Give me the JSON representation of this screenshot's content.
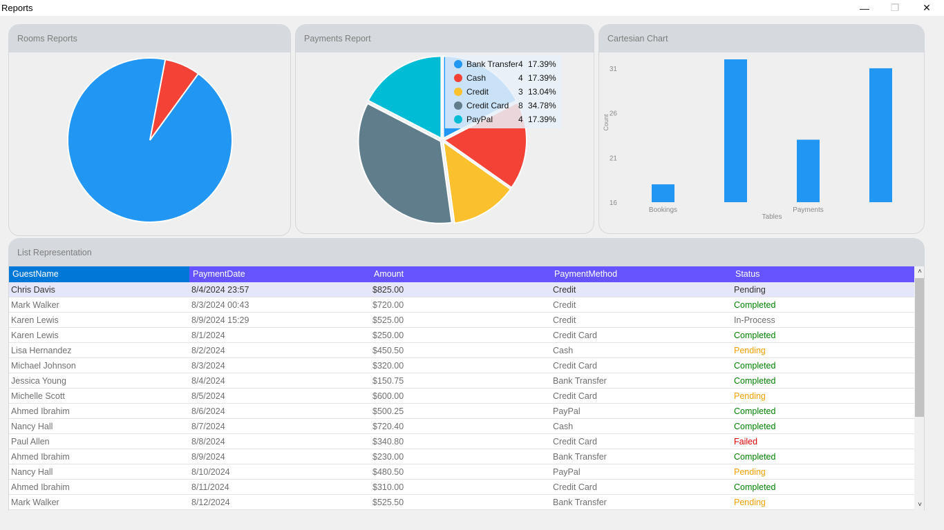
{
  "window": {
    "title": "Reports",
    "minimize_glyph": "—",
    "maximize_glyph": "❐",
    "close_glyph": "✕"
  },
  "rooms_card": {
    "title": "Rooms Reports",
    "slices": [
      {
        "value": 93,
        "color": "#2196f3"
      },
      {
        "value": 7,
        "color": "#f44336"
      }
    ]
  },
  "payments_card": {
    "title": "Payments Report",
    "legend": [
      {
        "name": "Bank Transfer",
        "count": "4",
        "pct": "17.39%",
        "color": "#2196f3"
      },
      {
        "name": "Cash",
        "count": "4",
        "pct": "17.39%",
        "color": "#f44336"
      },
      {
        "name": "Credit",
        "count": "3",
        "pct": "13.04%",
        "color": "#fbc02d"
      },
      {
        "name": "Credit Card",
        "count": "8",
        "pct": "34.78%",
        "color": "#607d8b"
      },
      {
        "name": "PayPal",
        "count": "4",
        "pct": "17.39%",
        "color": "#00bcd4"
      }
    ],
    "slice_order": [
      0,
      1,
      2,
      3,
      4
    ],
    "values": [
      4,
      4,
      3,
      8,
      4
    ]
  },
  "cartesian_card": {
    "title": "Cartesian Chart",
    "chart_data": {
      "type": "bar",
      "x": [
        0,
        1,
        2,
        3
      ],
      "x_tick_labels": [
        "Bookings",
        "",
        "Payments",
        ""
      ],
      "values": [
        18,
        32,
        23,
        31
      ],
      "ylim": [
        16,
        32
      ],
      "yticks": [
        16,
        21,
        26,
        31
      ],
      "xlabel": "Tables",
      "ylabel": "Count",
      "bar_color": "#2196f3",
      "grid": false
    }
  },
  "list_card": {
    "title": "List Representation",
    "columns": [
      "GuestName",
      "PaymentDate",
      "Amount",
      "PaymentMethod",
      "Status"
    ],
    "status_colors": {
      "Completed": "#008000",
      "Pending": "#f0a000",
      "Failed": "#e00000",
      "In-Process": "#707070"
    },
    "rows": [
      {
        "guest": "Chris Davis",
        "date": "8/4/2024 23:57",
        "amount": "$825.00",
        "method": "Credit",
        "status": "Pending",
        "selected": true
      },
      {
        "guest": "Mark Walker",
        "date": "8/3/2024 00:43",
        "amount": "$720.00",
        "method": "Credit",
        "status": "Completed"
      },
      {
        "guest": "Karen Lewis",
        "date": "8/9/2024 15:29",
        "amount": "$525.00",
        "method": "Credit",
        "status": "In-Process"
      },
      {
        "guest": "Karen Lewis",
        "date": "8/1/2024",
        "amount": "$250.00",
        "method": "Credit Card",
        "status": "Completed"
      },
      {
        "guest": "Lisa Hernandez",
        "date": "8/2/2024",
        "amount": "$450.50",
        "method": "Cash",
        "status": "Pending"
      },
      {
        "guest": "Michael Johnson",
        "date": "8/3/2024",
        "amount": "$320.00",
        "method": "Credit Card",
        "status": "Completed"
      },
      {
        "guest": "Jessica Young",
        "date": "8/4/2024",
        "amount": "$150.75",
        "method": "Bank Transfer",
        "status": "Completed"
      },
      {
        "guest": "Michelle Scott",
        "date": "8/5/2024",
        "amount": "$600.00",
        "method": "Credit Card",
        "status": "Pending"
      },
      {
        "guest": "Ahmed Ibrahim",
        "date": "8/6/2024",
        "amount": "$500.25",
        "method": "PayPal",
        "status": "Completed"
      },
      {
        "guest": "Nancy Hall",
        "date": "8/7/2024",
        "amount": "$720.40",
        "method": "Cash",
        "status": "Completed"
      },
      {
        "guest": "Paul Allen",
        "date": "8/8/2024",
        "amount": "$340.80",
        "method": "Credit Card",
        "status": "Failed"
      },
      {
        "guest": "Ahmed Ibrahim",
        "date": "8/9/2024",
        "amount": "$230.00",
        "method": "Bank Transfer",
        "status": "Completed"
      },
      {
        "guest": "Nancy Hall",
        "date": "8/10/2024",
        "amount": "$480.50",
        "method": "PayPal",
        "status": "Pending"
      },
      {
        "guest": "Ahmed Ibrahim",
        "date": "8/11/2024",
        "amount": "$310.00",
        "method": "Credit Card",
        "status": "Completed"
      },
      {
        "guest": "Mark Walker",
        "date": "8/12/2024",
        "amount": "$525.50",
        "method": "Bank Transfer",
        "status": "Pending"
      }
    ],
    "scroll_position": 0.0
  }
}
